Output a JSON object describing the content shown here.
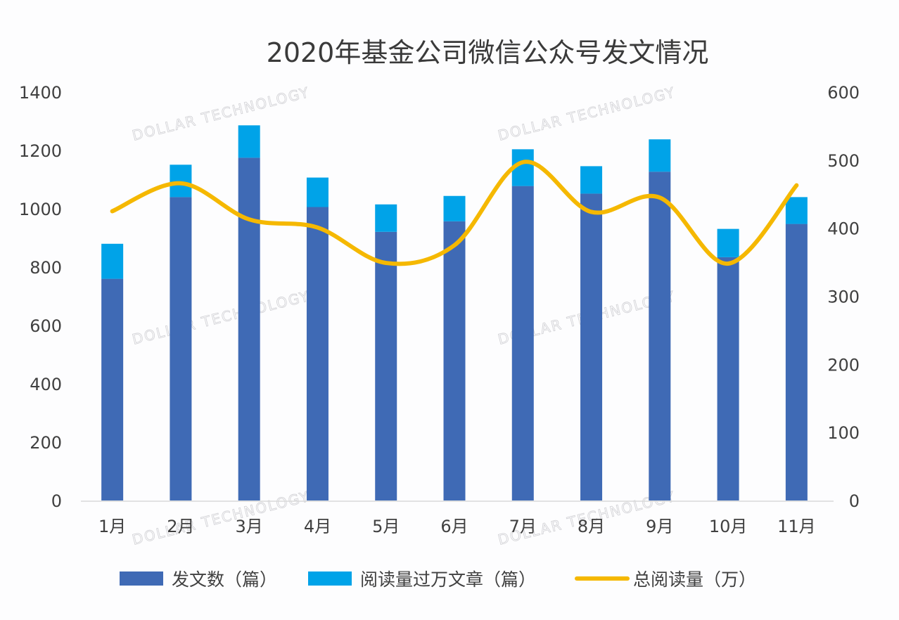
{
  "chart_data": {
    "type": "bar",
    "title": "2020年基金公司微信公众号发文情况",
    "categories": [
      "1月",
      "2月",
      "3月",
      "4月",
      "5月",
      "6月",
      "7月",
      "8月",
      "9月",
      "10月",
      "11月"
    ],
    "stacked": true,
    "series": [
      {
        "name": "发文数（篇）",
        "type": "bar",
        "axis": "left",
        "color": "#3f6ab5",
        "values": [
          760,
          1040,
          1175,
          1006,
          921,
          957,
          1078,
          1052,
          1127,
          834,
          948
        ]
      },
      {
        "name": "阅读量过万文章（篇）",
        "type": "bar",
        "axis": "left",
        "color": "#00a3e8",
        "values": [
          120,
          111,
          111,
          101,
          94,
          87,
          126,
          94,
          111,
          97,
          92
        ]
      },
      {
        "name": "总阅读量（万）",
        "type": "line",
        "axis": "right",
        "color": "#f5b800",
        "smooth": true,
        "values": [
          425,
          466,
          413,
          401,
          349,
          375,
          497,
          424,
          445,
          348,
          463
        ]
      }
    ],
    "y_left": {
      "range": [
        0,
        1400
      ],
      "ticks": [
        "0",
        "200",
        "400",
        "600",
        "800",
        "1000",
        "1200",
        "1400"
      ]
    },
    "y_right": {
      "range": [
        0,
        600
      ],
      "ticks": [
        "0",
        "100",
        "200",
        "300",
        "400",
        "500",
        "600"
      ]
    },
    "grid": false,
    "legend": "bottom",
    "watermark": "DOLLAR TECHNOLOGY"
  }
}
